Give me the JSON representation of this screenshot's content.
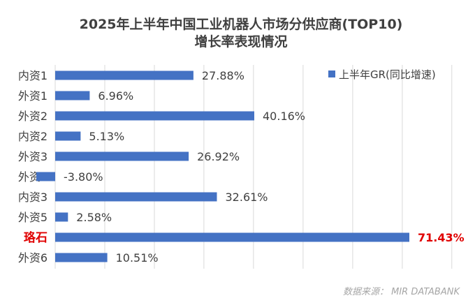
{
  "chart_data": {
    "type": "bar",
    "orientation": "horizontal",
    "title": "2025年上半年中国工业机器人市场分供应商(TOP10)",
    "subtitle": "增长率表现情况",
    "categories": [
      "内资1",
      "外资1",
      "外资2",
      "内资2",
      "外资3",
      "外资4",
      "内资3",
      "外资5",
      "珞石",
      "外资6"
    ],
    "series": [
      {
        "name": "上半年GR(同比增速)",
        "values": [
          27.88,
          6.96,
          40.16,
          5.13,
          26.92,
          -3.8,
          32.61,
          2.58,
          71.43,
          10.51
        ],
        "labels": [
          "27.88%",
          "6.96%",
          "40.16%",
          "5.13%",
          "26.92%",
          "-3.80%",
          "32.61%",
          "2.58%",
          "71.43%",
          "10.51%"
        ]
      }
    ],
    "highlight": {
      "category": "珞石",
      "color": "#e00000"
    },
    "xlim": [
      -5,
      75
    ],
    "grid": true,
    "legend": "top-right",
    "bar_color": "#4472c4",
    "source": "数据来源： MIR DATABANK"
  }
}
